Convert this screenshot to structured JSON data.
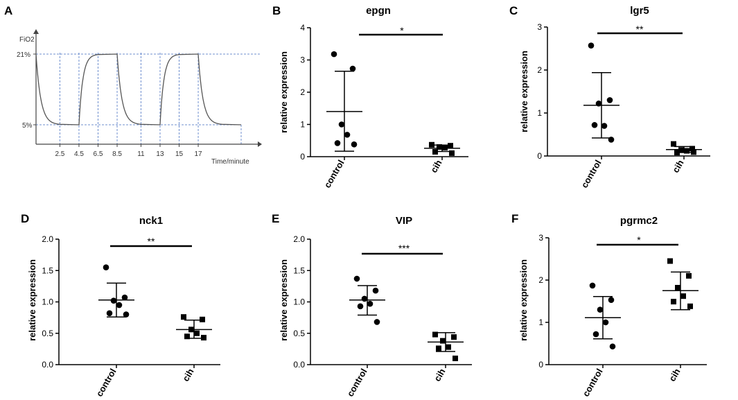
{
  "chart_data": [
    {
      "id": "A",
      "panel_label": "A",
      "type": "line",
      "title": "",
      "ylabel": "FiO2",
      "xlabel": "Time/minute",
      "y_levels": [
        {
          "value": 21,
          "label": "21%"
        },
        {
          "value": 5,
          "label": "5%"
        }
      ],
      "x_ticks": [
        "2.5",
        "4.5",
        "6.5",
        "8.5",
        "11",
        "13",
        "15",
        "17"
      ],
      "cycles": [
        {
          "fall_start": 0,
          "fall_end": 2.5,
          "rise_start": 4.5,
          "rise_end": 6.5,
          "hold_end": 8.5
        },
        {
          "fall_start": 8.5,
          "fall_end": 11,
          "rise_start": 13,
          "rise_end": 15,
          "hold_end": 17
        },
        {
          "fall_start": 17,
          "fall_end": 19.5,
          "rise_start": 21.5
        }
      ],
      "x_range": [
        0,
        21.5
      ],
      "gridlines": "dashed blue"
    },
    {
      "id": "B",
      "panel_label": "B",
      "type": "scatter",
      "title": "epgn",
      "ylabel": "relative expression",
      "ylim": [
        0,
        4
      ],
      "yticks": [
        "0",
        "1",
        "2",
        "3",
        "4"
      ],
      "categories": [
        "control",
        "cih"
      ],
      "series": [
        {
          "name": "control",
          "marker": "circle",
          "values": [
            3.18,
            2.73,
            1.0,
            0.68,
            0.42,
            0.38
          ],
          "mean": 1.4,
          "sd_low": 0.17,
          "sd_high": 2.65
        },
        {
          "name": "cih",
          "marker": "square",
          "values": [
            0.37,
            0.34,
            0.3,
            0.28,
            0.15,
            0.11
          ],
          "mean": 0.26,
          "sd_low": 0.16,
          "sd_high": 0.36
        }
      ],
      "significance": "*"
    },
    {
      "id": "C",
      "panel_label": "C",
      "type": "scatter",
      "title": "lgr5",
      "ylabel": "relative expression",
      "ylim": [
        0,
        3
      ],
      "yticks": [
        "0",
        "1",
        "2",
        "3"
      ],
      "categories": [
        "control",
        "cih"
      ],
      "series": [
        {
          "name": "control",
          "marker": "circle",
          "values": [
            2.57,
            1.3,
            1.22,
            0.7,
            0.72,
            0.38
          ],
          "mean": 1.18,
          "sd_low": 0.42,
          "sd_high": 1.94
        },
        {
          "name": "cih",
          "marker": "square",
          "values": [
            0.28,
            0.17,
            0.14,
            0.12,
            0.08,
            0.09
          ],
          "mean": 0.15,
          "sd_low": 0.08,
          "sd_high": 0.22
        }
      ],
      "significance": "**"
    },
    {
      "id": "D",
      "panel_label": "D",
      "type": "scatter",
      "title": "nck1",
      "ylabel": "relative expression",
      "ylim": [
        0,
        2.0
      ],
      "yticks": [
        "0.0",
        "0.5",
        "1.0",
        "1.5",
        "2.0"
      ],
      "categories": [
        "control",
        "cih"
      ],
      "series": [
        {
          "name": "control",
          "marker": "circle",
          "values": [
            1.55,
            1.07,
            1.02,
            0.95,
            0.82,
            0.8
          ],
          "mean": 1.03,
          "sd_low": 0.76,
          "sd_high": 1.3
        },
        {
          "name": "cih",
          "marker": "square",
          "values": [
            0.76,
            0.72,
            0.56,
            0.5,
            0.45,
            0.43
          ],
          "mean": 0.56,
          "sd_low": 0.42,
          "sd_high": 0.71
        }
      ],
      "significance": "**"
    },
    {
      "id": "E",
      "panel_label": "E",
      "type": "scatter",
      "title": "VIP",
      "ylabel": "relative expression",
      "ylim": [
        0,
        2.0
      ],
      "yticks": [
        "0.0",
        "0.5",
        "1.0",
        "1.5",
        "2.0"
      ],
      "categories": [
        "control",
        "cih"
      ],
      "series": [
        {
          "name": "control",
          "marker": "circle",
          "values": [
            1.37,
            1.18,
            1.05,
            0.97,
            0.93,
            0.68
          ],
          "mean": 1.03,
          "sd_low": 0.79,
          "sd_high": 1.26
        },
        {
          "name": "cih",
          "marker": "square",
          "values": [
            0.48,
            0.44,
            0.38,
            0.28,
            0.26,
            0.1
          ],
          "mean": 0.36,
          "sd_low": 0.21,
          "sd_high": 0.51
        }
      ],
      "significance": "***"
    },
    {
      "id": "F",
      "panel_label": "F",
      "type": "scatter",
      "title": "pgrmc2",
      "ylabel": "relative expression",
      "ylim": [
        0,
        3
      ],
      "yticks": [
        "0",
        "1",
        "2",
        "3"
      ],
      "categories": [
        "control",
        "cih"
      ],
      "series": [
        {
          "name": "control",
          "marker": "circle",
          "values": [
            1.87,
            1.53,
            1.3,
            1.0,
            0.72,
            0.43
          ],
          "mean": 1.11,
          "sd_low": 0.61,
          "sd_high": 1.61
        },
        {
          "name": "cih",
          "marker": "square",
          "values": [
            2.45,
            2.1,
            1.82,
            1.62,
            1.49,
            1.38
          ],
          "mean": 1.75,
          "sd_low": 1.3,
          "sd_high": 2.19
        }
      ],
      "significance": "*"
    }
  ]
}
